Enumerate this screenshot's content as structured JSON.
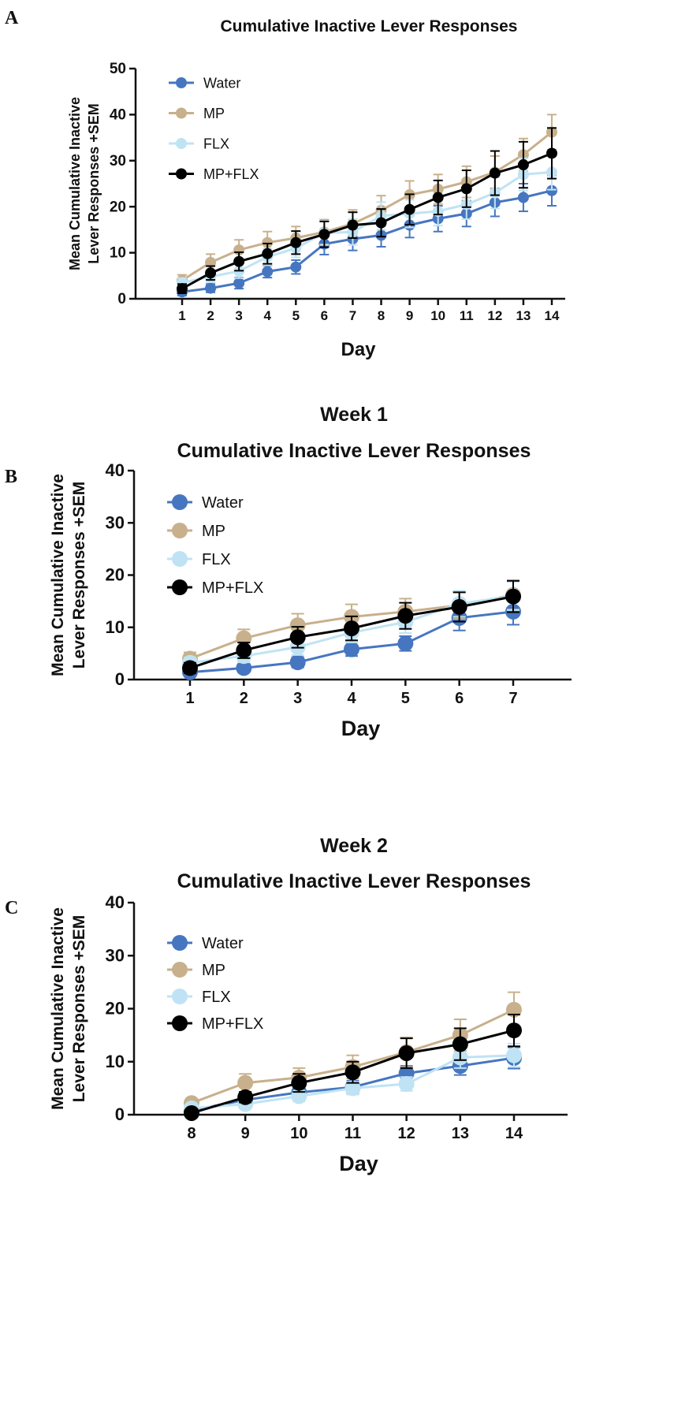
{
  "colors": {
    "Water": "#4676c0",
    "MP": "#c8b08c",
    "FLX": "#bfe3f4",
    "MP+FLX": "#000000",
    "axis": "#111111"
  },
  "chart_data": [
    {
      "type": "line",
      "panel_letter": "A",
      "title": "Cumulative Inactive Lever Responses",
      "xlabel": "Day",
      "ylabel_lines": [
        "Mean Cumulative Inactive",
        "Lever Responses +SEM"
      ],
      "ylim": [
        0,
        50
      ],
      "yticks": [
        0,
        10,
        20,
        30,
        40,
        50
      ],
      "x": [
        1,
        2,
        3,
        4,
        5,
        6,
        7,
        8,
        9,
        10,
        11,
        12,
        13,
        14
      ],
      "legend": "top-left",
      "series": [
        {
          "name": "Water",
          "values": [
            1.5,
            2.3,
            3.4,
            5.9,
            6.9,
            11.9,
            13.0,
            13.8,
            16.0,
            17.4,
            18.5,
            20.9,
            22.0,
            23.5
          ],
          "sem": [
            0.8,
            0.9,
            1.2,
            1.3,
            1.5,
            2.3,
            2.5,
            2.5,
            2.7,
            2.8,
            2.8,
            3.0,
            3.0,
            3.3
          ]
        },
        {
          "name": "MP",
          "values": [
            4.0,
            7.9,
            10.6,
            12.2,
            13.2,
            14.5,
            16.3,
            19.2,
            22.6,
            23.8,
            25.4,
            27.5,
            31.3,
            36.2
          ],
          "sem": [
            1.2,
            1.8,
            2.2,
            2.4,
            2.5,
            2.7,
            3.0,
            3.2,
            3.0,
            3.2,
            3.4,
            3.5,
            3.5,
            3.8
          ]
        },
        {
          "name": "FLX",
          "values": [
            3.5,
            4.8,
            6.0,
            9.1,
            11.0,
            14.3,
            14.5,
            18.0,
            18.5,
            19.0,
            20.5,
            23.0,
            27.0,
            27.5
          ],
          "sem": [
            1.0,
            1.2,
            1.5,
            1.8,
            2.0,
            2.6,
            2.8,
            3.0,
            3.0,
            3.1,
            3.2,
            3.4,
            3.5,
            3.8
          ]
        },
        {
          "name": "MP+FLX",
          "values": [
            2.2,
            5.6,
            8.1,
            9.8,
            12.2,
            14.0,
            16.0,
            16.5,
            19.4,
            22.0,
            23.9,
            27.3,
            29.1,
            31.6
          ],
          "sem": [
            1.0,
            1.5,
            2.0,
            2.2,
            2.5,
            2.8,
            2.8,
            3.0,
            3.3,
            3.7,
            4.0,
            4.8,
            5.0,
            5.5
          ]
        }
      ]
    },
    {
      "type": "line",
      "panel_letter": "B",
      "title_lines": [
        "Week 1",
        "Cumulative Inactive Lever Responses"
      ],
      "xlabel": "Day",
      "ylabel_lines": [
        "Mean Cumulative Inactive",
        "Lever Responses +SEM"
      ],
      "ylim": [
        0,
        40
      ],
      "yticks": [
        0,
        10,
        20,
        30,
        40
      ],
      "x": [
        1,
        2,
        3,
        4,
        5,
        6,
        7
      ],
      "legend": "top-left",
      "series": [
        {
          "name": "Water",
          "values": [
            1.4,
            2.2,
            3.3,
            5.8,
            6.9,
            11.8,
            13.0
          ],
          "sem": [
            0.6,
            0.8,
            1.0,
            1.3,
            1.4,
            2.4,
            2.5
          ]
        },
        {
          "name": "MP",
          "values": [
            4.0,
            7.9,
            10.4,
            12.0,
            13.0,
            14.2,
            16.2
          ],
          "sem": [
            1.2,
            1.7,
            2.2,
            2.4,
            2.5,
            2.6,
            2.8
          ]
        },
        {
          "name": "FLX",
          "values": [
            3.2,
            4.5,
            6.2,
            9.0,
            11.0,
            14.5,
            16.0
          ],
          "sem": [
            1.0,
            1.2,
            1.5,
            1.9,
            2.1,
            2.5,
            2.7
          ]
        },
        {
          "name": "MP+FLX",
          "values": [
            2.2,
            5.6,
            8.1,
            9.8,
            12.2,
            13.9,
            15.9
          ],
          "sem": [
            1.0,
            1.5,
            2.0,
            2.3,
            2.5,
            2.8,
            3.0
          ]
        }
      ]
    },
    {
      "type": "line",
      "panel_letter": "C",
      "title_lines": [
        "Week 2",
        "Cumulative Inactive Lever Responses"
      ],
      "xlabel": "Day",
      "ylabel_lines": [
        "Mean Cumulative Inactive",
        "Lever Responses +SEM"
      ],
      "ylim": [
        0,
        40
      ],
      "yticks": [
        0,
        10,
        20,
        30,
        40
      ],
      "x": [
        8,
        9,
        10,
        11,
        12,
        13,
        14
      ],
      "legend": "top-left",
      "series": [
        {
          "name": "Water",
          "values": [
            0.8,
            2.8,
            4.2,
            5.2,
            7.8,
            9.2,
            10.7
          ],
          "sem": [
            0.5,
            0.8,
            1.0,
            1.2,
            1.4,
            1.7,
            2.0
          ]
        },
        {
          "name": "MP",
          "values": [
            2.2,
            6.0,
            7.0,
            9.0,
            11.8,
            15.0,
            19.8
          ],
          "sem": [
            0.8,
            1.7,
            1.8,
            2.2,
            2.8,
            3.0,
            3.3
          ]
        },
        {
          "name": "FLX",
          "values": [
            1.2,
            2.0,
            3.5,
            5.0,
            5.8,
            10.8,
            11.2
          ],
          "sem": [
            0.6,
            0.8,
            1.0,
            1.2,
            1.3,
            2.0,
            2.2
          ]
        },
        {
          "name": "MP+FLX",
          "values": [
            0.3,
            3.3,
            6.0,
            8.0,
            11.6,
            13.3,
            15.9
          ],
          "sem": [
            0.3,
            1.0,
            1.7,
            2.0,
            2.8,
            3.0,
            3.0
          ]
        }
      ]
    }
  ]
}
